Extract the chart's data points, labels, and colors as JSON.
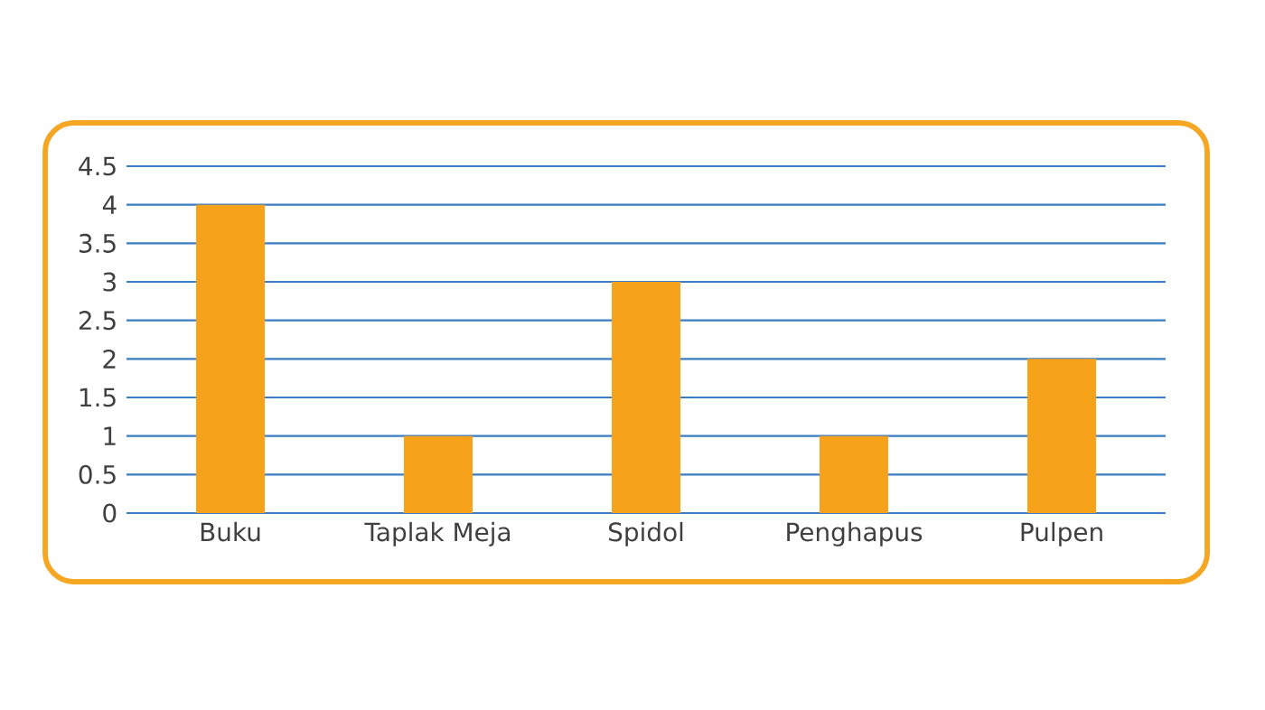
{
  "chart_data": {
    "type": "bar",
    "categories": [
      "Buku",
      "Taplak Meja",
      "Spidol",
      "Penghapus",
      "Pulpen"
    ],
    "values": [
      4,
      1,
      3,
      1,
      2
    ],
    "color": "#f7a21b",
    "ylim": [
      0,
      4.5
    ],
    "yticks": [
      0,
      0.5,
      1,
      1.5,
      2,
      2.5,
      3,
      3.5,
      4,
      4.5
    ],
    "grid": "y"
  }
}
